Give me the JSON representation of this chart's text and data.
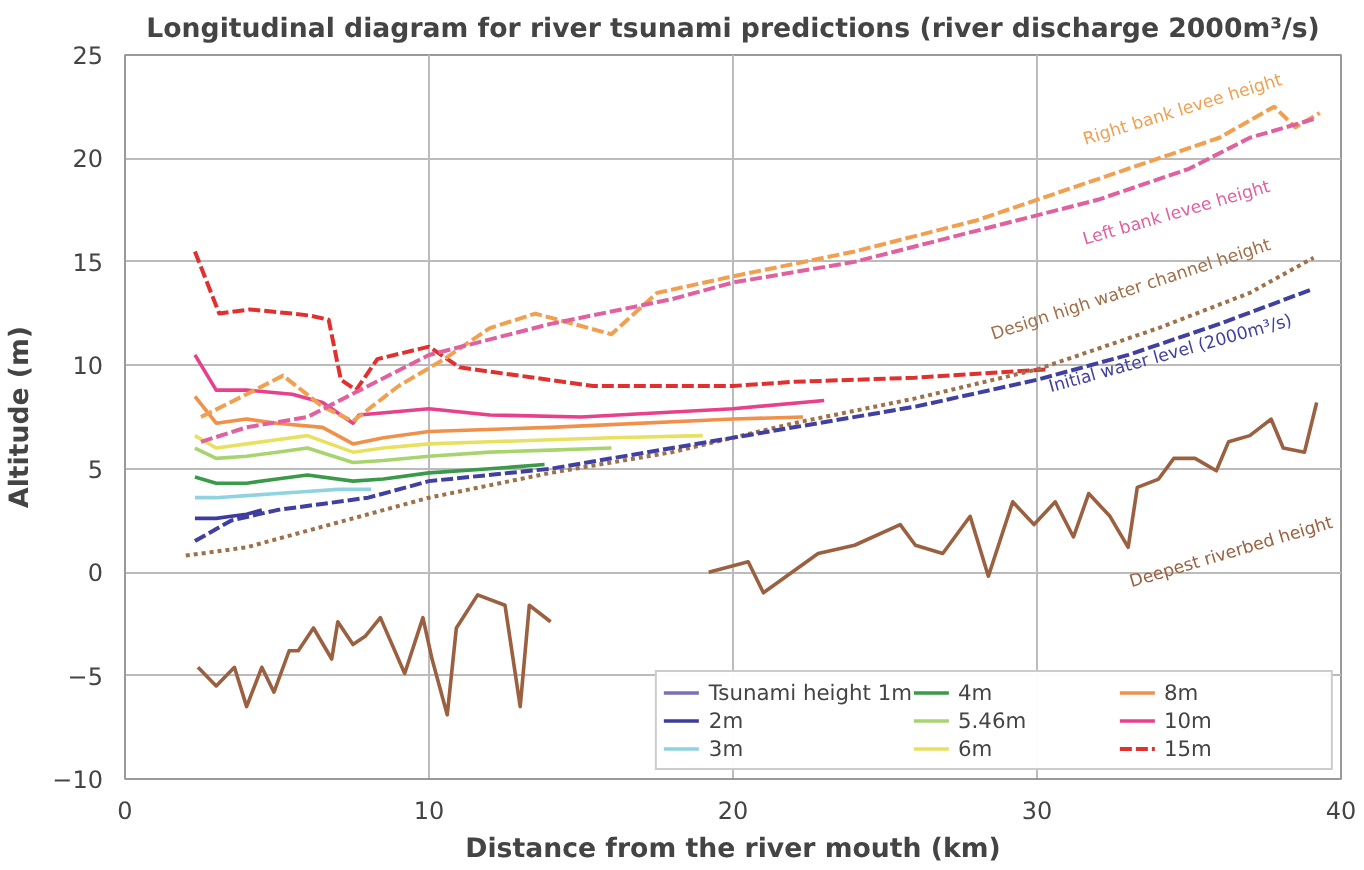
{
  "chart_data": {
    "type": "line",
    "title": "Longitudinal diagram for river tsunami predictions (river discharge 2000m³/s)",
    "xlabel": "Distance from the river mouth (km)",
    "ylabel": "Altitude (m)",
    "xlim": [
      0,
      40
    ],
    "ylim": [
      -10,
      25
    ],
    "xticks": [
      0,
      10,
      20,
      30,
      40
    ],
    "yticks": [
      -10,
      -5,
      0,
      5,
      10,
      15,
      20,
      25
    ],
    "grid": true,
    "legend": "bottom right",
    "series": [
      {
        "name": "Tsunami height 1m",
        "color": "#7b6fb8",
        "line_style": "solid"
      },
      {
        "name": "2m",
        "color": "#3c3c9a",
        "line_style": "solid",
        "x": [
          2.3,
          3.0,
          3.5,
          4.0,
          4.5
        ],
        "values": [
          2.6,
          2.6,
          2.7,
          2.8,
          3.0
        ]
      },
      {
        "name": "3m",
        "color": "#8fd3e0",
        "line_style": "solid",
        "x": [
          2.3,
          3.0,
          4.0,
          5.0,
          6.0,
          7.0,
          8.1
        ],
        "values": [
          3.6,
          3.6,
          3.7,
          3.8,
          3.9,
          4.0,
          4.0
        ]
      },
      {
        "name": "4m",
        "color": "#3a9a4a",
        "line_style": "solid",
        "x": [
          2.3,
          3.0,
          4.0,
          5.0,
          6.0,
          7.5,
          8.5,
          10.0,
          12.0,
          13.8
        ],
        "values": [
          4.6,
          4.3,
          4.3,
          4.5,
          4.7,
          4.4,
          4.5,
          4.8,
          5.0,
          5.2
        ]
      },
      {
        "name": "5.46m",
        "color": "#a8d46f",
        "line_style": "solid",
        "x": [
          2.3,
          3.0,
          4.0,
          5.0,
          6.0,
          7.5,
          8.5,
          10.0,
          12.0,
          14.0,
          16.0
        ],
        "values": [
          6.0,
          5.5,
          5.6,
          5.8,
          6.0,
          5.3,
          5.4,
          5.6,
          5.8,
          5.9,
          6.0
        ]
      },
      {
        "name": "6m",
        "color": "#e8e060",
        "line_style": "solid",
        "x": [
          2.3,
          3.0,
          4.0,
          5.0,
          6.0,
          7.5,
          8.5,
          10.0,
          12.0,
          14.0,
          16.0,
          19.0
        ],
        "values": [
          6.6,
          6.0,
          6.2,
          6.4,
          6.6,
          5.8,
          6.0,
          6.2,
          6.3,
          6.4,
          6.5,
          6.6
        ]
      },
      {
        "name": "8m",
        "color": "#f0904a",
        "line_style": "solid",
        "x": [
          2.3,
          3.0,
          4.0,
          5.0,
          6.5,
          7.5,
          8.5,
          10.0,
          14.0,
          20.0,
          22.3
        ],
        "values": [
          8.5,
          7.2,
          7.4,
          7.2,
          7.0,
          6.2,
          6.5,
          6.8,
          7.0,
          7.4,
          7.5
        ]
      },
      {
        "name": "10m",
        "color": "#e8408a",
        "line_style": "solid",
        "x": [
          2.3,
          3.0,
          4.0,
          5.5,
          6.5,
          7.5,
          7.7,
          10.0,
          12.0,
          15.0,
          20.0,
          23.0
        ],
        "values": [
          10.5,
          8.8,
          8.8,
          8.6,
          8.2,
          7.2,
          7.6,
          7.9,
          7.6,
          7.5,
          7.9,
          8.3
        ]
      },
      {
        "name": "15m",
        "color": "#e03030",
        "line_style": "dashed",
        "x": [
          2.3,
          3.1,
          4.1,
          5.5,
          6.1,
          6.7,
          7.1,
          7.6,
          8.3,
          10.0,
          11.0,
          15.4,
          20.0,
          22.0,
          26.0,
          30.3
        ],
        "values": [
          15.5,
          12.5,
          12.7,
          12.5,
          12.4,
          12.2,
          9.3,
          8.8,
          10.3,
          10.9,
          9.9,
          9.0,
          9.0,
          9.2,
          9.4,
          9.8
        ]
      },
      {
        "name": "Right bank levee height",
        "color": "#f0a050",
        "line_style": "dashed",
        "x": [
          2.5,
          4.0,
          5.2,
          6.5,
          7.5,
          9.0,
          10.5,
          12.0,
          13.5,
          16.0,
          17.5,
          20.0,
          24.0,
          28.0,
          31.0,
          34.0,
          36.0,
          37.8,
          38.5,
          39.3
        ],
        "values": [
          7.5,
          8.6,
          9.5,
          8.0,
          7.3,
          9.0,
          10.3,
          11.8,
          12.5,
          11.5,
          13.5,
          14.3,
          15.5,
          17.0,
          18.5,
          20.0,
          21.0,
          22.5,
          21.5,
          22.2
        ]
      },
      {
        "name": "Left bank levee height",
        "color": "#e060a0",
        "line_style": "dashed",
        "x": [
          2.5,
          4.0,
          6.0,
          8.0,
          10.0,
          14.0,
          18.0,
          20.0,
          24.0,
          28.0,
          32.0,
          35.0,
          37.0,
          39.1
        ],
        "values": [
          6.3,
          7.0,
          7.5,
          9.0,
          10.5,
          12.0,
          13.2,
          14.0,
          15.0,
          16.5,
          18.0,
          19.5,
          21.0,
          21.9
        ]
      },
      {
        "name": "Design high water channel height",
        "color": "#a0704a",
        "line_style": "dotted",
        "x": [
          2.0,
          4.0,
          6.0,
          8.0,
          10.0,
          14.0,
          18.0,
          22.0,
          26.0,
          30.0,
          34.0,
          37.0,
          39.1
        ],
        "values": [
          0.8,
          1.2,
          2.0,
          2.8,
          3.6,
          4.8,
          5.8,
          7.2,
          8.4,
          9.8,
          11.8,
          13.5,
          15.2
        ]
      },
      {
        "name": "Initial water level (2000m³/s)",
        "color": "#4040a0",
        "line_style": "dashed",
        "x": [
          2.3,
          3.5,
          5.0,
          8.0,
          10.0,
          14.0,
          18.0,
          22.0,
          26.0,
          30.0,
          33.0,
          36.0,
          39.1
        ],
        "values": [
          1.5,
          2.5,
          3.0,
          3.6,
          4.4,
          5.0,
          6.0,
          7.0,
          8.0,
          9.3,
          10.5,
          12.0,
          13.7
        ]
      },
      {
        "name": "Deepest riverbed height",
        "color": "#9a6040",
        "line_style": "solid",
        "x": [
          2.4,
          3.0,
          3.6,
          4.0,
          4.5,
          4.9,
          5.4,
          5.7,
          6.2,
          6.8,
          7.0,
          7.5,
          7.9,
          8.4,
          9.2,
          9.8,
          10.1,
          10.6,
          10.9,
          11.6,
          12.5,
          13.0,
          13.3,
          14.0,
          16.5,
          19.2,
          20.5,
          21.0,
          22.8,
          24.0,
          25.5,
          26.0,
          26.9,
          27.8,
          28.4,
          29.2,
          29.9,
          30.6,
          31.2,
          31.7,
          32.4,
          33.0,
          33.3,
          34.0,
          34.5,
          35.2,
          35.9,
          36.3,
          37.0,
          37.7,
          38.1,
          38.8,
          39.2
        ],
        "values": [
          -4.6,
          -5.5,
          -4.6,
          -6.5,
          -4.6,
          -5.8,
          -3.8,
          -3.8,
          -2.7,
          -4.2,
          -2.4,
          -3.5,
          -3.1,
          -2.2,
          -4.9,
          -2.2,
          -4.2,
          -6.9,
          -2.7,
          -1.1,
          -1.6,
          -6.5,
          -1.6,
          -2.4,
          null,
          0.0,
          0.5,
          -1.0,
          0.9,
          1.3,
          2.3,
          1.3,
          0.9,
          2.7,
          -0.2,
          3.4,
          2.3,
          3.4,
          1.7,
          3.8,
          2.7,
          1.2,
          4.1,
          4.5,
          5.5,
          5.5,
          4.9,
          6.3,
          6.6,
          7.4,
          6.0,
          5.8,
          8.2
        ]
      }
    ]
  }
}
